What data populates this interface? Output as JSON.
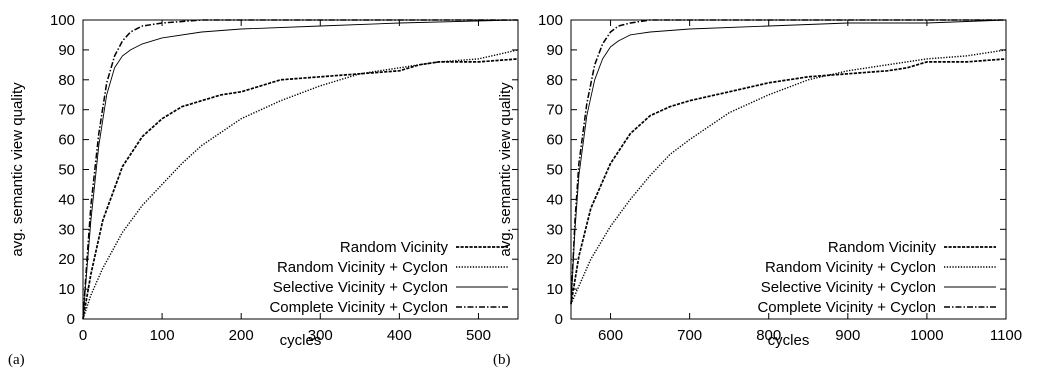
{
  "chart_data": [
    {
      "type": "line",
      "panel_label": "(a)",
      "xlabel": "cycles",
      "ylabel": "avg. semantic view quality",
      "xlim": [
        0,
        550
      ],
      "ylim": [
        0,
        100
      ],
      "xticks": [
        0,
        100,
        200,
        300,
        400,
        500
      ],
      "yticks": [
        0,
        10,
        20,
        30,
        40,
        50,
        60,
        70,
        80,
        90,
        100
      ],
      "legend_position": "bottom-right",
      "series": [
        {
          "name": "Random Vicinity",
          "style": "dashed",
          "x": [
            0,
            10,
            25,
            50,
            75,
            100,
            125,
            150,
            175,
            200,
            225,
            250,
            300,
            350,
            400,
            425,
            450,
            500,
            550
          ],
          "y": [
            0,
            15,
            33,
            51,
            61,
            67,
            71,
            73,
            75,
            76,
            78,
            80,
            81,
            82,
            83,
            85,
            86,
            86,
            87
          ]
        },
        {
          "name": "Random Vicinity + Cyclon",
          "style": "dotted",
          "x": [
            0,
            10,
            25,
            50,
            75,
            100,
            125,
            150,
            200,
            250,
            300,
            350,
            400,
            425,
            450,
            500,
            550
          ],
          "y": [
            0,
            8,
            17,
            29,
            38,
            45,
            52,
            58,
            67,
            73,
            78,
            82,
            84,
            85,
            86,
            87,
            90
          ]
        },
        {
          "name": "Selective Vicinity + Cyclon",
          "style": "thin",
          "x": [
            0,
            5,
            10,
            20,
            30,
            40,
            50,
            60,
            75,
            100,
            150,
            200,
            300,
            400,
            550
          ],
          "y": [
            0,
            17,
            33,
            58,
            75,
            84,
            88,
            90,
            92,
            94,
            96,
            97,
            98,
            99,
            100
          ]
        },
        {
          "name": "Complete Vicinity + Cyclon",
          "style": "dashdot",
          "x": [
            0,
            5,
            10,
            20,
            30,
            40,
            50,
            60,
            75,
            100,
            150,
            200,
            550
          ],
          "y": [
            0,
            20,
            38,
            62,
            79,
            88,
            93,
            96,
            98,
            99,
            100,
            100,
            100
          ]
        }
      ]
    },
    {
      "type": "line",
      "panel_label": "(b)",
      "xlabel": "cycles",
      "ylabel": "avg. semantic view quality",
      "xlim": [
        550,
        1100
      ],
      "ylim": [
        0,
        100
      ],
      "xticks": [
        600,
        700,
        800,
        900,
        1000,
        1100
      ],
      "yticks": [
        0,
        10,
        20,
        30,
        40,
        50,
        60,
        70,
        80,
        90,
        100
      ],
      "legend_position": "bottom-right",
      "series": [
        {
          "name": "Random Vicinity",
          "style": "dashed",
          "x": [
            550,
            560,
            575,
            600,
            625,
            650,
            675,
            700,
            750,
            800,
            850,
            900,
            950,
            975,
            1000,
            1050,
            1100
          ],
          "y": [
            5,
            21,
            37,
            52,
            62,
            68,
            71,
            73,
            76,
            79,
            81,
            82,
            83,
            84,
            86,
            86,
            87
          ]
        },
        {
          "name": "Random Vicinity + Cyclon",
          "style": "dotted",
          "x": [
            550,
            560,
            575,
            600,
            625,
            650,
            675,
            700,
            750,
            800,
            850,
            900,
            950,
            1000,
            1050,
            1100
          ],
          "y": [
            5,
            11,
            20,
            31,
            40,
            48,
            55,
            60,
            69,
            75,
            80,
            83,
            85,
            87,
            88,
            90
          ]
        },
        {
          "name": "Selective Vicinity + Cyclon",
          "style": "thin",
          "x": [
            550,
            555,
            560,
            570,
            580,
            590,
            600,
            610,
            625,
            650,
            700,
            800,
            900,
            1000,
            1100
          ],
          "y": [
            5,
            30,
            48,
            68,
            80,
            87,
            91,
            93,
            95,
            96,
            97,
            98,
            99,
            99,
            100
          ]
        },
        {
          "name": "Complete Vicinity + Cyclon",
          "style": "dashdot",
          "x": [
            550,
            555,
            560,
            570,
            580,
            590,
            600,
            610,
            625,
            650,
            700,
            800,
            1100
          ],
          "y": [
            5,
            33,
            52,
            72,
            85,
            92,
            96,
            98,
            99,
            100,
            100,
            100,
            100
          ]
        }
      ]
    }
  ]
}
